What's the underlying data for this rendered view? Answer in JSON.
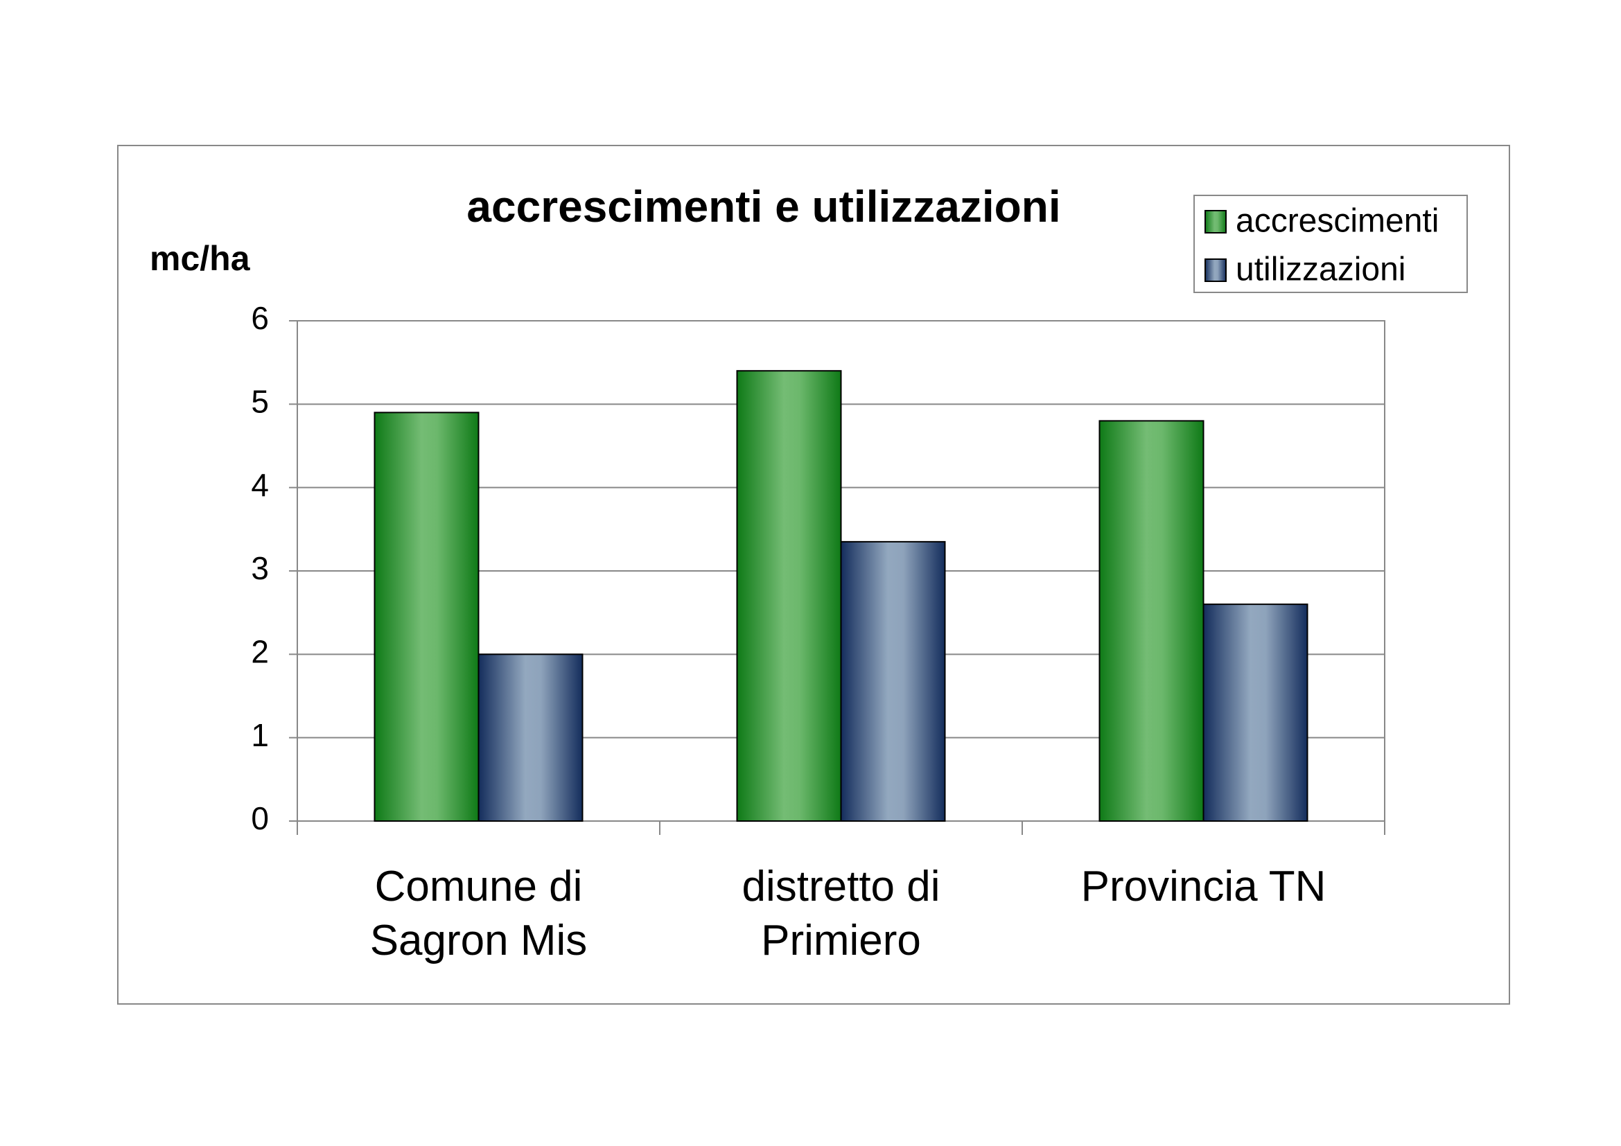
{
  "chart_data": {
    "type": "bar",
    "title": "accrescimenti e utilizzazioni",
    "y_label": "mc/ha",
    "categories": [
      "Comune di Sagron Mis",
      "distretto di Primiero",
      "Provincia TN"
    ],
    "series": [
      {
        "name": "accrescimenti",
        "color": "#3c9c3c",
        "values": [
          4.9,
          5.4,
          4.8
        ]
      },
      {
        "name": "utilizzazioni",
        "color": "#6f86a8",
        "values": [
          2.0,
          3.35,
          2.6
        ]
      }
    ],
    "ylim": [
      0,
      6
    ],
    "yticks": [
      0,
      1,
      2,
      3,
      4,
      5,
      6
    ],
    "grid": true,
    "legend": "top-right"
  }
}
